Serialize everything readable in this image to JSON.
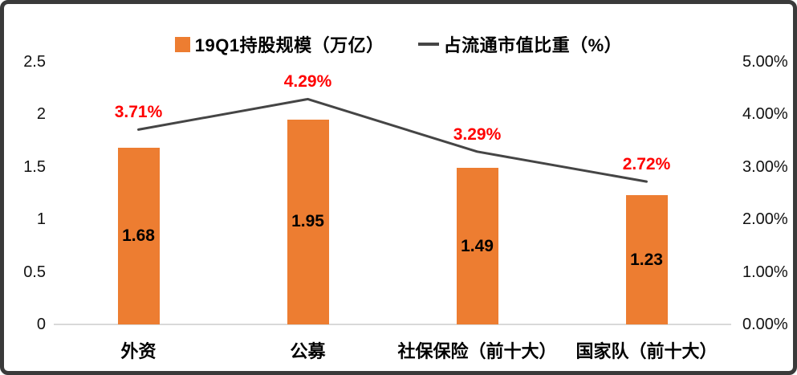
{
  "chart_data": {
    "type": "bar",
    "subtype": "combo-bar-line",
    "categories": [
      "外资",
      "公募",
      "社保保险（前十大）",
      "国家队（前十大）"
    ],
    "series": [
      {
        "name": "19Q1持股规模（万亿）",
        "type": "bar",
        "axis": "left",
        "values": [
          1.68,
          1.95,
          1.49,
          1.23
        ],
        "labels": [
          "1.68",
          "1.95",
          "1.49",
          "1.23"
        ],
        "color": "#ED7D31",
        "label_color": "#000000"
      },
      {
        "name": "占流通市值比重（%）",
        "type": "line",
        "axis": "right",
        "values": [
          3.71,
          4.29,
          3.29,
          2.72
        ],
        "labels": [
          "3.71%",
          "4.29%",
          "3.29%",
          "2.72%"
        ],
        "color": "#454545",
        "label_color": "#FF0000"
      }
    ],
    "left_axis": {
      "min": 0,
      "max": 2.5,
      "ticks": [
        "2.5",
        "2",
        "1.5",
        "1",
        "0.5",
        "0"
      ]
    },
    "right_axis": {
      "min": 0,
      "max": 5,
      "ticks": [
        "5.00%",
        "4.00%",
        "3.00%",
        "2.00%",
        "1.00%",
        "0.00%"
      ]
    },
    "legend_position": "top",
    "grid": "baseline-only"
  }
}
